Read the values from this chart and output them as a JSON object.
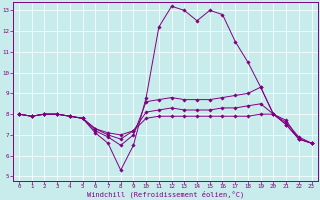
{
  "xlabel": "Windchill (Refroidissement éolien,°C)",
  "background_color": "#c8ecec",
  "line_color": "#800080",
  "grid_color": "#ffffff",
  "xlim": [
    -0.5,
    23.5
  ],
  "ylim": [
    4.8,
    13.4
  ],
  "xticks": [
    0,
    1,
    2,
    3,
    4,
    5,
    6,
    7,
    8,
    9,
    10,
    11,
    12,
    13,
    14,
    15,
    16,
    17,
    18,
    19,
    20,
    21,
    22,
    23
  ],
  "yticks": [
    5,
    6,
    7,
    8,
    9,
    10,
    11,
    12,
    13
  ],
  "hours": [
    0,
    1,
    2,
    3,
    4,
    5,
    6,
    7,
    8,
    9,
    10,
    11,
    12,
    13,
    14,
    15,
    16,
    17,
    18,
    19,
    20,
    21,
    22,
    23
  ],
  "series": [
    [
      8.0,
      7.9,
      8.0,
      8.0,
      7.9,
      7.8,
      7.1,
      6.6,
      5.3,
      6.5,
      8.8,
      12.2,
      13.2,
      13.0,
      12.5,
      13.0,
      12.8,
      11.5,
      10.5,
      9.3,
      8.0,
      7.7,
      6.8,
      6.6
    ],
    [
      8.0,
      7.9,
      8.0,
      8.0,
      7.9,
      7.8,
      7.2,
      6.9,
      6.5,
      7.0,
      8.6,
      8.7,
      8.8,
      8.7,
      8.7,
      8.7,
      8.8,
      8.9,
      9.0,
      9.3,
      8.0,
      7.5,
      6.8,
      6.6
    ],
    [
      8.0,
      7.9,
      8.0,
      8.0,
      7.9,
      7.8,
      7.3,
      7.0,
      6.8,
      7.2,
      8.1,
      8.2,
      8.3,
      8.2,
      8.2,
      8.2,
      8.3,
      8.3,
      8.4,
      8.5,
      8.0,
      7.5,
      6.8,
      6.6
    ],
    [
      8.0,
      7.9,
      8.0,
      8.0,
      7.9,
      7.8,
      7.3,
      7.1,
      7.0,
      7.2,
      7.8,
      7.9,
      7.9,
      7.9,
      7.9,
      7.9,
      7.9,
      7.9,
      7.9,
      8.0,
      8.0,
      7.6,
      6.9,
      6.6
    ]
  ]
}
